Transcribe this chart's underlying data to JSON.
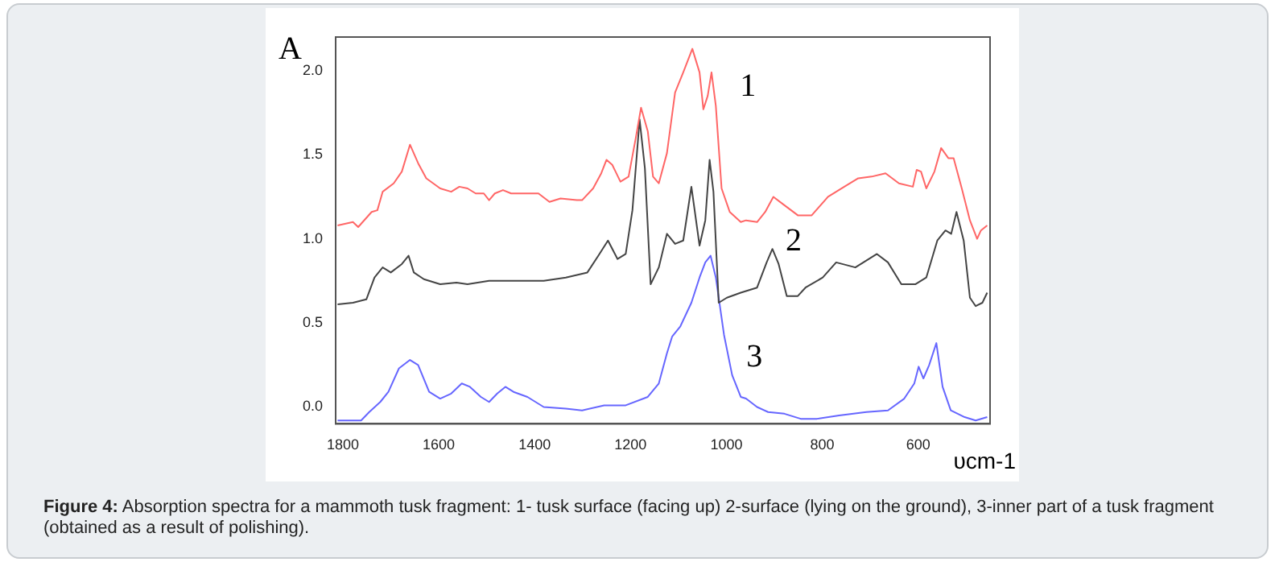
{
  "chart_data": {
    "type": "line",
    "xlabel": "υcm-1",
    "ylabel": "A",
    "xlim": [
      1815,
      450
    ],
    "ylim": [
      -0.1,
      2.2
    ],
    "xticks": [
      1800,
      1600,
      1400,
      1200,
      1000,
      800,
      600
    ],
    "yticks": [
      {
        "value": 0,
        "label": "0.0"
      },
      {
        "value": 0.5,
        "label": "0.5"
      },
      {
        "value": 1,
        "label": "1.0"
      },
      {
        "value": 1.5,
        "label": "1.5"
      },
      {
        "value": 2,
        "label": "2.0"
      }
    ],
    "grid": false,
    "legend": false,
    "marker": "none",
    "line_style": "solid",
    "series": [
      {
        "name": "1",
        "color": "#ff6666",
        "x": [
          1811,
          1779,
          1768,
          1740,
          1728,
          1717,
          1694,
          1677,
          1660,
          1643,
          1626,
          1597,
          1574,
          1557,
          1540,
          1523,
          1506,
          1495,
          1483,
          1466,
          1449,
          1415,
          1392,
          1369,
          1346,
          1312,
          1301,
          1278,
          1261,
          1250,
          1238,
          1221,
          1204,
          1189,
          1178,
          1164,
          1153,
          1141,
          1124,
          1107,
          1090,
          1071,
          1056,
          1048,
          1039,
          1031,
          1022,
          1010,
          993,
          970,
          959,
          936,
          919,
          902,
          879,
          851,
          822,
          788,
          754,
          725,
          697,
          668,
          640,
          611,
          603,
          594,
          583,
          566,
          552,
          537,
          526,
          509,
          492,
          477,
          469,
          456
        ],
        "values": [
          1.08,
          1.1,
          1.07,
          1.16,
          1.17,
          1.28,
          1.33,
          1.4,
          1.56,
          1.45,
          1.36,
          1.3,
          1.28,
          1.31,
          1.3,
          1.27,
          1.27,
          1.23,
          1.27,
          1.29,
          1.27,
          1.27,
          1.27,
          1.22,
          1.24,
          1.23,
          1.23,
          1.3,
          1.39,
          1.47,
          1.44,
          1.34,
          1.37,
          1.6,
          1.78,
          1.64,
          1.37,
          1.33,
          1.51,
          1.87,
          1.99,
          2.13,
          1.99,
          1.77,
          1.85,
          1.99,
          1.79,
          1.3,
          1.16,
          1.1,
          1.11,
          1.1,
          1.16,
          1.25,
          1.2,
          1.14,
          1.14,
          1.25,
          1.31,
          1.36,
          1.37,
          1.39,
          1.33,
          1.31,
          1.41,
          1.4,
          1.3,
          1.4,
          1.54,
          1.48,
          1.48,
          1.3,
          1.11,
          1.0,
          1.05,
          1.08
        ]
      },
      {
        "name": "2",
        "color": "#444444",
        "x": [
          1811,
          1779,
          1751,
          1734,
          1717,
          1700,
          1677,
          1663,
          1652,
          1631,
          1597,
          1563,
          1540,
          1495,
          1438,
          1381,
          1335,
          1290,
          1267,
          1247,
          1227,
          1210,
          1196,
          1181,
          1170,
          1158,
          1141,
          1124,
          1107,
          1090,
          1073,
          1056,
          1044,
          1035,
          1027,
          1016,
          999,
          970,
          936,
          916,
          904,
          891,
          874,
          851,
          835,
          799,
          771,
          731,
          686,
          663,
          635,
          606,
          583,
          560,
          543,
          531,
          520,
          505,
          492,
          480,
          466,
          456
        ],
        "values": [
          0.61,
          0.62,
          0.64,
          0.77,
          0.83,
          0.8,
          0.85,
          0.9,
          0.8,
          0.76,
          0.73,
          0.74,
          0.73,
          0.75,
          0.75,
          0.75,
          0.77,
          0.8,
          0.9,
          0.99,
          0.88,
          0.91,
          1.17,
          1.71,
          1.42,
          0.73,
          0.83,
          1.03,
          0.97,
          0.99,
          1.31,
          0.96,
          1.11,
          1.47,
          1.28,
          0.62,
          0.65,
          0.68,
          0.71,
          0.86,
          0.94,
          0.85,
          0.66,
          0.66,
          0.71,
          0.77,
          0.86,
          0.83,
          0.91,
          0.86,
          0.73,
          0.73,
          0.77,
          0.99,
          1.05,
          1.03,
          1.16,
          0.99,
          0.65,
          0.6,
          0.62,
          0.68
        ]
      },
      {
        "name": "3",
        "color": "#6666ff",
        "x": [
          1811,
          1762,
          1745,
          1722,
          1705,
          1683,
          1660,
          1643,
          1620,
          1597,
          1574,
          1552,
          1535,
          1512,
          1495,
          1478,
          1461,
          1444,
          1415,
          1381,
          1335,
          1301,
          1255,
          1210,
          1164,
          1141,
          1124,
          1113,
          1096,
          1073,
          1056,
          1044,
          1033,
          1022,
          1005,
          988,
          970,
          959,
          936,
          913,
          879,
          845,
          811,
          765,
          708,
          663,
          629,
          608,
          599,
          589,
          577,
          562,
          549,
          532,
          503,
          480,
          456
        ],
        "values": [
          -0.08,
          -0.08,
          -0.03,
          0.03,
          0.09,
          0.23,
          0.28,
          0.25,
          0.09,
          0.05,
          0.08,
          0.14,
          0.12,
          0.06,
          0.03,
          0.08,
          0.12,
          0.09,
          0.06,
          0.0,
          -0.01,
          -0.02,
          0.01,
          0.01,
          0.06,
          0.14,
          0.32,
          0.42,
          0.48,
          0.62,
          0.77,
          0.86,
          0.9,
          0.77,
          0.43,
          0.19,
          0.06,
          0.05,
          0.0,
          -0.03,
          -0.04,
          -0.07,
          -0.07,
          -0.05,
          -0.03,
          -0.02,
          0.05,
          0.14,
          0.24,
          0.17,
          0.25,
          0.38,
          0.12,
          -0.02,
          -0.06,
          -0.08,
          -0.06
        ]
      }
    ],
    "annotations": [
      "Figure 4: Absorption spectra for a mammoth tusk fragment: 1- tusk surface (facing up) 2-surface (lying on the ground), 3-inner part of a tusk fragment (obtained as a result of polishing)."
    ]
  }
}
